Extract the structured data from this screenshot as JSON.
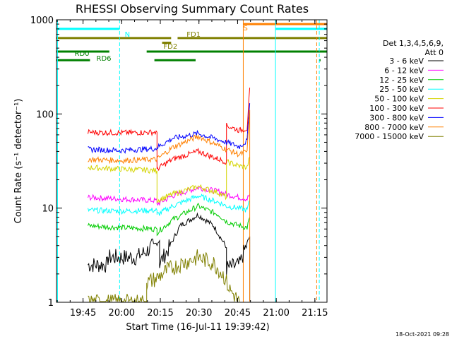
{
  "chart_data": {
    "type": "line",
    "title": "RHESSI Observing Summary Count Rates",
    "xlabel": "Start Time (16-Jul-11 19:39:42)",
    "ylabel": "Count Rate (s⁻¹ detector⁻¹)",
    "y_scale": "log",
    "ylim": [
      1,
      1000
    ],
    "xlim_minutes": [
      -5.0,
      100.0
    ],
    "x_ticks": [
      {
        "t": 5.3,
        "label": "19:45"
      },
      {
        "t": 20.3,
        "label": "20:00"
      },
      {
        "t": 35.3,
        "label": "20:15"
      },
      {
        "t": 50.3,
        "label": "20:30"
      },
      {
        "t": 65.3,
        "label": "20:45"
      },
      {
        "t": 80.3,
        "label": "21:00"
      },
      {
        "t": 95.3,
        "label": "21:15"
      }
    ],
    "y_ticks": [
      {
        "v": 1,
        "label": "1"
      },
      {
        "v": 10,
        "label": "10"
      },
      {
        "v": 100,
        "label": "100"
      },
      {
        "v": 1000,
        "label": "1000"
      }
    ],
    "legend_title": [
      "Det 1,3,4,5,6,9,",
      "Att 0"
    ],
    "legend_position": "right",
    "series": [
      {
        "name": "3 - 6 keV",
        "color": "#000000",
        "pts": [
          [
            7.2,
            2.5
          ],
          [
            15,
            2.5
          ],
          [
            15,
            3.0
          ],
          [
            26,
            3.0
          ],
          [
            30,
            3.5
          ],
          [
            35,
            4.5
          ],
          [
            35,
            2.6
          ],
          [
            38,
            3.5
          ],
          [
            43,
            6.5
          ],
          [
            50,
            8.5
          ],
          [
            56,
            6.5
          ],
          [
            61,
            3.8
          ],
          [
            61,
            2.3
          ],
          [
            66,
            2.5
          ],
          [
            70,
            5.0
          ],
          [
            70,
            1.0
          ]
        ]
      },
      {
        "name": "6 - 12 keV",
        "color": "#ff00ff",
        "pts": [
          [
            7.2,
            13
          ],
          [
            20,
            12.5
          ],
          [
            34,
            12
          ],
          [
            34,
            11
          ],
          [
            40,
            13.5
          ],
          [
            50,
            16.5
          ],
          [
            58,
            15
          ],
          [
            61,
            14
          ],
          [
            66,
            13
          ],
          [
            69,
            12.5
          ],
          [
            70,
            14
          ]
        ]
      },
      {
        "name": "12 - 25 keV",
        "color": "#00cc00",
        "pts": [
          [
            7.2,
            6.5
          ],
          [
            20,
            6.2
          ],
          [
            34,
            6.0
          ],
          [
            34,
            5.5
          ],
          [
            40,
            7.5
          ],
          [
            50,
            10.5
          ],
          [
            58,
            8.5
          ],
          [
            61,
            7.2
          ],
          [
            66,
            6.5
          ],
          [
            69,
            6.2
          ],
          [
            70,
            8
          ]
        ]
      },
      {
        "name": "25 - 50 keV",
        "color": "#00ffff",
        "pts": [
          [
            7.2,
            9.5
          ],
          [
            20,
            9.3
          ],
          [
            34,
            9.5
          ],
          [
            34,
            8.5
          ],
          [
            40,
            10.5
          ],
          [
            50,
            13.5
          ],
          [
            58,
            11.5
          ],
          [
            61,
            10.5
          ],
          [
            66,
            10
          ],
          [
            69,
            9.5
          ],
          [
            70,
            12
          ]
        ]
      },
      {
        "name": "50 - 100 keV",
        "color": "#d4d400",
        "pts": [
          [
            7.2,
            27
          ],
          [
            20,
            26
          ],
          [
            34,
            25
          ],
          [
            34,
            12
          ],
          [
            40,
            14
          ],
          [
            50,
            17
          ],
          [
            58,
            14.5
          ],
          [
            61,
            13
          ],
          [
            61,
            31
          ],
          [
            66,
            28
          ],
          [
            69,
            27
          ],
          [
            70,
            35
          ]
        ]
      },
      {
        "name": "100 - 300 keV",
        "color": "#ff0000",
        "pts": [
          [
            7.2,
            64
          ],
          [
            20,
            63
          ],
          [
            34,
            64
          ],
          [
            34,
            26
          ],
          [
            40,
            33
          ],
          [
            50,
            40
          ],
          [
            58,
            33
          ],
          [
            61,
            31
          ],
          [
            61,
            75
          ],
          [
            66,
            67
          ],
          [
            69,
            70
          ],
          [
            70,
            190
          ]
        ]
      },
      {
        "name": "300 - 800 keV",
        "color": "#0000ff",
        "pts": [
          [
            7.2,
            42
          ],
          [
            20,
            41
          ],
          [
            34,
            43
          ],
          [
            34,
            44
          ],
          [
            40,
            55
          ],
          [
            50,
            62
          ],
          [
            58,
            53
          ],
          [
            61,
            50
          ],
          [
            66,
            45
          ],
          [
            69,
            52
          ],
          [
            70,
            130
          ]
        ]
      },
      {
        "name": "800 - 7000 keV",
        "color": "#ff8000",
        "pts": [
          [
            7.2,
            33
          ],
          [
            20,
            32
          ],
          [
            34,
            33
          ],
          [
            34,
            33
          ],
          [
            40,
            44
          ],
          [
            50,
            58
          ],
          [
            58,
            46
          ],
          [
            61,
            42
          ],
          [
            66,
            37
          ],
          [
            69,
            40
          ],
          [
            70,
            110
          ],
          [
            70,
            1.0
          ]
        ]
      },
      {
        "name": "7000 - 15000 keV",
        "color": "#808000",
        "pts": [
          [
            7.2,
            1.0
          ],
          [
            30,
            1.0
          ],
          [
            30,
            1.6
          ],
          [
            34,
            1.8
          ],
          [
            38,
            2.2
          ],
          [
            44,
            2.6
          ],
          [
            50,
            3.0
          ],
          [
            56,
            2.6
          ],
          [
            60,
            1.9
          ],
          [
            62,
            1.4
          ],
          [
            66,
            1.0
          ]
        ]
      }
    ],
    "annotations": [
      {
        "label": "N",
        "color": "#00ffff",
        "t": 21.5,
        "level": "upper"
      },
      {
        "label": "S",
        "color": "#ff8000",
        "t": 67.5,
        "level": "top"
      },
      {
        "label": "FD1",
        "color": "#808000",
        "t": 45.5,
        "level": "upper"
      },
      {
        "label": "FD2",
        "color": "#808000",
        "t": 36.5,
        "level": "mid"
      },
      {
        "label": "RD0",
        "color": "#008000",
        "t": 2.0,
        "level": "lower"
      },
      {
        "label": "RD6",
        "color": "#008000",
        "t": 10.5,
        "level": "lowest"
      }
    ],
    "flag_bars": [
      {
        "name": "night",
        "color": "#00ffff",
        "y": 800,
        "segments": [
          [
            -5,
            19.5
          ],
          [
            80,
            100
          ]
        ]
      },
      {
        "name": "saa",
        "color": "#ff8000",
        "y": 900,
        "segments": [
          [
            67.5,
            100
          ]
        ]
      },
      {
        "name": "fd1",
        "color": "#808000",
        "y": 640,
        "segments": [
          [
            -5,
            39.5
          ],
          [
            42,
            100
          ]
        ]
      },
      {
        "name": "fd2",
        "color": "#808000",
        "y": 570,
        "segments": [
          [
            36,
            39.5
          ]
        ]
      },
      {
        "name": "rd0",
        "color": "#008000",
        "y": 460,
        "segments": [
          [
            -5,
            15.5
          ],
          [
            30,
            100
          ]
        ]
      },
      {
        "name": "rd6",
        "color": "#008000",
        "y": 372,
        "segments": [
          [
            -5,
            8.0
          ],
          [
            33,
            49.0
          ],
          [
            97,
            97.5
          ]
        ]
      }
    ],
    "vertical_markers": [
      {
        "t": -4.6,
        "color": "#00ffff",
        "style": "solid"
      },
      {
        "t": 19.5,
        "color": "#00ffff",
        "style": "dashed"
      },
      {
        "t": 67.5,
        "color": "#ff8000",
        "style": "solid"
      },
      {
        "t": 80.0,
        "color": "#00ffff",
        "style": "solid"
      },
      {
        "t": 96.0,
        "color": "#ff8000",
        "style": "dashed"
      },
      {
        "t": 97.0,
        "color": "#00ffff",
        "style": "dashed"
      }
    ],
    "grid": false
  },
  "footer_timestamp": "18-Oct-2021 09:28"
}
